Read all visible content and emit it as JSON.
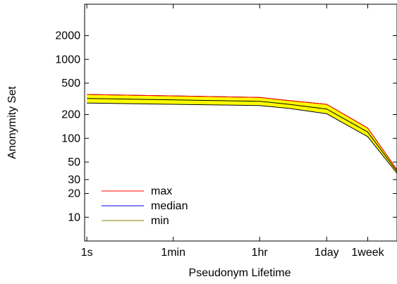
{
  "chart_data": {
    "type": "area",
    "xlabel": "Pseudonym Lifetime",
    "ylabel": "Anonymity Set",
    "y_scale": "log",
    "x_scale": "log",
    "ylim": [
      5,
      5000
    ],
    "x_unit": "seconds",
    "xlim": [
      0.9,
      2419200
    ],
    "x_ticks": [
      {
        "value": 1,
        "label": "1s"
      },
      {
        "value": 60,
        "label": "1min"
      },
      {
        "value": 3600,
        "label": "1hr"
      },
      {
        "value": 86400,
        "label": "1day"
      },
      {
        "value": 604800,
        "label": "1week"
      }
    ],
    "y_ticks": [
      {
        "value": 10,
        "label": "10"
      },
      {
        "value": 20,
        "label": "20"
      },
      {
        "value": 30,
        "label": "30"
      },
      {
        "value": 50,
        "label": "50"
      },
      {
        "value": 100,
        "label": "100"
      },
      {
        "value": 200,
        "label": "200"
      },
      {
        "value": 500,
        "label": "500"
      },
      {
        "value": 1000,
        "label": "1000"
      },
      {
        "value": 2000,
        "label": "2000"
      }
    ],
    "band_color": "#ffff00",
    "legend_position": "bottom-left",
    "x": [
      1,
      3600,
      14400,
      86400,
      604800,
      2419200
    ],
    "series": [
      {
        "name": "max",
        "color": "#ff0000",
        "values": [
          360,
          330,
          300,
          270,
          135,
          40
        ]
      },
      {
        "name": "median",
        "color": "#0000ff",
        "values": [
          320,
          295,
          270,
          235,
          120,
          38
        ]
      },
      {
        "name": "min",
        "color": "#808000",
        "values": [
          280,
          260,
          240,
          205,
          105,
          36
        ]
      }
    ],
    "line_color": "#000000"
  }
}
